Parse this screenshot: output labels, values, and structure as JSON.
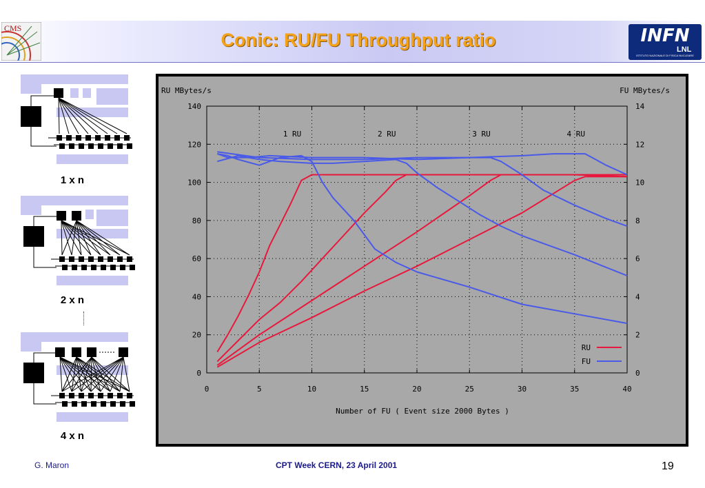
{
  "slide": {
    "title": "Conic: RU/FU Throughput ratio",
    "logos": {
      "left": {
        "name": "CMS",
        "text": "CMS"
      },
      "right": {
        "name": "INFN LNL",
        "text": "INFN",
        "subtext": "LNL",
        "fine_text": "ISTITUTO NAZIONALE DI FISICA NUCLEARE"
      }
    },
    "diagram_labels": [
      "1 x n",
      "2 x n",
      "4 x n"
    ],
    "footer": {
      "author": "G. Maron",
      "event": "CPT Week   CERN, 23 April 2001",
      "page": "19"
    }
  },
  "colors": {
    "title": "#f4a21a",
    "ru": "#e8183c",
    "fu": "#4a5ae8",
    "plot_bg": "#a8a8a8",
    "frame": "#000000",
    "diagram_panel": "#c8c8f2"
  },
  "chart_data": {
    "type": "line",
    "title": "",
    "xlabel": "Number of FU ( Event size 2000 Bytes )",
    "ylabel_left": "RU MBytes/s",
    "ylabel_right": "FU MBytes/s",
    "xlim": [
      0,
      40
    ],
    "ylim_left": [
      0,
      140
    ],
    "ylim_right": [
      0,
      14
    ],
    "xticks": [
      0,
      5,
      10,
      15,
      20,
      25,
      30,
      35,
      40
    ],
    "yticks_left": [
      0,
      20,
      40,
      60,
      80,
      100,
      120,
      140
    ],
    "yticks_right": [
      0,
      2,
      4,
      6,
      8,
      10,
      12,
      14
    ],
    "grid": true,
    "legend_position": "bottom-right",
    "annotations": [
      {
        "text": "1 RU",
        "x": 9
      },
      {
        "text": "2 RU",
        "x": 18
      },
      {
        "text": "3 RU",
        "x": 27
      },
      {
        "text": "4 RU",
        "x": 36
      }
    ],
    "series": [
      {
        "name": "RU",
        "group": "RU",
        "axis": "left",
        "x": [
          1,
          2,
          3,
          4,
          5,
          6,
          7,
          8,
          9,
          10,
          15,
          20,
          25,
          30,
          35,
          40
        ],
        "values": [
          11,
          20,
          30,
          41,
          53,
          67,
          78,
          89,
          101,
          104,
          104,
          104,
          104,
          104,
          104,
          104
        ]
      },
      {
        "group": "RU",
        "axis": "left",
        "x": [
          1,
          3,
          5,
          7,
          9,
          11,
          13,
          15,
          17,
          18,
          19,
          20,
          25,
          30,
          35,
          40
        ],
        "values": [
          6,
          17,
          28,
          37,
          48,
          60,
          72,
          84,
          95,
          101,
          104,
          104,
          104,
          104,
          104,
          104
        ]
      },
      {
        "group": "RU",
        "axis": "left",
        "x": [
          1,
          5,
          10,
          15,
          20,
          25,
          27,
          28,
          30,
          35,
          40
        ],
        "values": [
          4,
          20,
          38,
          56,
          74,
          93,
          101,
          104,
          104,
          104,
          103
        ]
      },
      {
        "group": "RU",
        "axis": "left",
        "x": [
          1,
          5,
          10,
          15,
          20,
          25,
          30,
          35,
          36,
          40
        ],
        "values": [
          3,
          16,
          29,
          43,
          56,
          70,
          84,
          101,
          103,
          103
        ]
      },
      {
        "name": "FU",
        "group": "FU",
        "axis": "right",
        "x": [
          1,
          2,
          3,
          5,
          7,
          9,
          10,
          11,
          12,
          14,
          16,
          18,
          20,
          25,
          30,
          35,
          40
        ],
        "values": [
          11.5,
          11.4,
          11.2,
          10.9,
          11.3,
          11.4,
          11.1,
          10.0,
          9.2,
          8.0,
          6.5,
          5.8,
          5.3,
          4.5,
          3.6,
          3.1,
          2.6
        ]
      },
      {
        "group": "FU",
        "axis": "right",
        "x": [
          1,
          3,
          5,
          7,
          10,
          12,
          15,
          18,
          19,
          20,
          22,
          24,
          26,
          28,
          30,
          35,
          40
        ],
        "values": [
          11.1,
          11.4,
          11.2,
          11.1,
          11.0,
          11.0,
          11.1,
          11.2,
          11.0,
          10.5,
          9.7,
          9.0,
          8.3,
          7.7,
          7.2,
          6.2,
          5.1
        ]
      },
      {
        "group": "FU",
        "axis": "right",
        "x": [
          1,
          2,
          4,
          6,
          10,
          15,
          20,
          25,
          27,
          28,
          30,
          32,
          35,
          38,
          40
        ],
        "values": [
          11.5,
          11.3,
          11.3,
          11.4,
          11.3,
          11.3,
          11.2,
          11.3,
          11.3,
          11.1,
          10.4,
          9.6,
          8.8,
          8.1,
          7.7
        ]
      },
      {
        "group": "FU",
        "axis": "right",
        "x": [
          1,
          5,
          10,
          15,
          20,
          25,
          30,
          33,
          35,
          36,
          37,
          38,
          40
        ],
        "values": [
          11.6,
          11.3,
          11.2,
          11.2,
          11.3,
          11.3,
          11.4,
          11.5,
          11.5,
          11.5,
          11.2,
          10.9,
          10.4
        ]
      }
    ]
  }
}
